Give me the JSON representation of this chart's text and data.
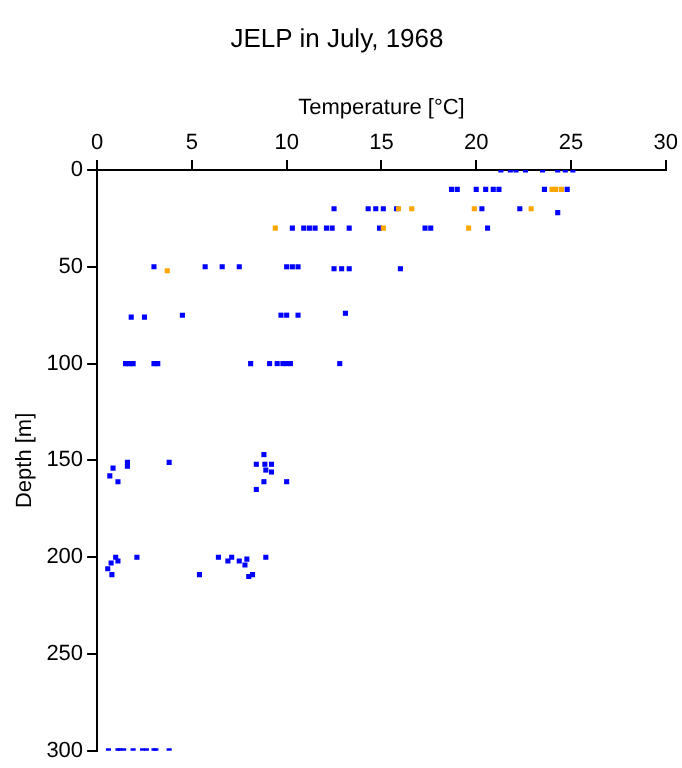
{
  "chart_data": {
    "type": "scatter",
    "title": "JELP in July, 1968",
    "xlabel": "Temperature [°C]",
    "ylabel": "Depth [m]",
    "xlim": [
      0,
      30
    ],
    "xticks": [
      0,
      5,
      10,
      15,
      20,
      25,
      30
    ],
    "ylim": [
      300,
      0
    ],
    "yticks": [
      0,
      50,
      100,
      150,
      200,
      250,
      300
    ],
    "grid": false,
    "legend": false,
    "marker": "square",
    "series": [
      {
        "color": "#0000ff",
        "x": [
          21.3,
          21.8,
          22.1,
          22.6,
          23.5,
          24.3,
          24.7,
          25.1,
          18.7,
          19,
          20,
          20.5,
          20.9,
          21.2,
          23.6,
          24.8,
          12.5,
          14.3,
          14.7,
          15.1,
          15.8,
          20.3,
          22.3,
          24.3,
          10.3,
          10.9,
          11.2,
          11.5,
          12.1,
          12.4,
          13.3,
          14.9,
          17.3,
          17.6,
          20.6,
          3,
          5.7,
          6.6,
          7.5,
          10,
          10.3,
          10.6,
          12.5,
          12.9,
          13.3,
          16,
          1.8,
          2.5,
          4.5,
          9.7,
          10,
          10.6,
          13.1,
          1.5,
          1.7,
          1.9,
          3,
          3.2,
          8.1,
          9.1,
          9.5,
          9.8,
          10,
          10.2,
          12.8,
          0.67,
          0.84,
          1.1,
          1.6,
          1.6,
          3.8,
          8.4,
          8.85,
          9.2,
          8.8,
          8.9,
          9.2,
          8.4,
          8.8,
          10,
          0.56,
          0.74,
          0.78,
          0.98,
          1.1,
          2.1,
          5.4,
          6.4,
          6.9,
          7.1,
          7.5,
          7.8,
          7.9,
          8,
          8.2,
          8.9,
          0.6,
          1.1,
          1.2,
          1.4,
          1.9,
          2.4,
          2.6,
          3,
          3.1,
          3.8
        ],
        "values": [
          0,
          0,
          0,
          0,
          0,
          0,
          0,
          0,
          10,
          10,
          10,
          10,
          10,
          10,
          10,
          10,
          20,
          20,
          20,
          20,
          20,
          20,
          20,
          22,
          30,
          30,
          30,
          30,
          30,
          30,
          30,
          30,
          30,
          30,
          30,
          50,
          50,
          50,
          50,
          50,
          50,
          50,
          51,
          51,
          51,
          51,
          76,
          76,
          75,
          75,
          75,
          75,
          74,
          100,
          100,
          100,
          100,
          100,
          100,
          100,
          100,
          100,
          100,
          100,
          100,
          158,
          154,
          161,
          151,
          153,
          151,
          152,
          152,
          152,
          147,
          155,
          156,
          165,
          161,
          161,
          206,
          203,
          209,
          200,
          202,
          200,
          209,
          200,
          202,
          200,
          202,
          204,
          201,
          210,
          209,
          200,
          300,
          300,
          300,
          300,
          300,
          300,
          300,
          300,
          300,
          300
        ]
      },
      {
        "color": "#ffa500",
        "x": [
          24,
          24.2,
          24.5,
          15.9,
          16.6,
          19.9,
          22.9,
          9.4,
          15.1,
          19.6,
          3.7
        ],
        "values": [
          10,
          10,
          10,
          20,
          20,
          20,
          20,
          30,
          30,
          30,
          52
        ]
      }
    ]
  }
}
